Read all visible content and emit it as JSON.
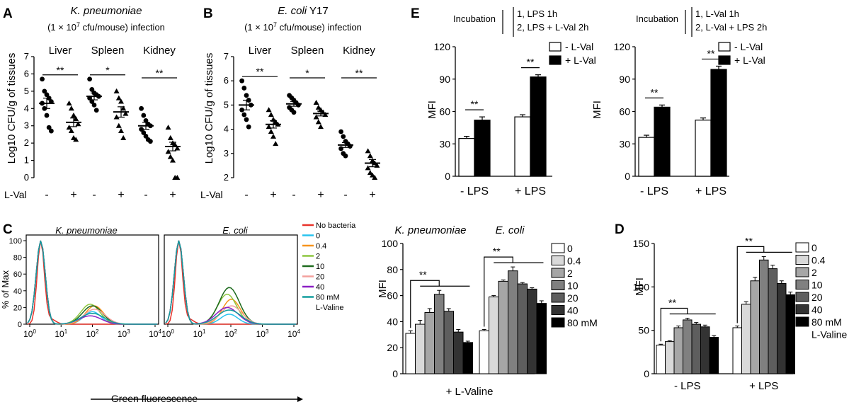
{
  "panel_letters": {
    "a": "A",
    "b": "B",
    "c": "C",
    "d": "D",
    "e": "E"
  },
  "colors": {
    "black": "#000000",
    "white": "#ffffff"
  },
  "chart_data": [
    {
      "id": "A",
      "type": "scatter",
      "title_species": "K. pneumoniae",
      "title_dose_prefix": "(1 × 10",
      "title_dose_exp": "7",
      "title_dose_suffix": " cfu/mouse) infection",
      "ylabel": "Log10 CFU/g of tissues",
      "ylim": [
        0,
        7
      ],
      "yticks": [
        "0",
        "1",
        "2",
        "3",
        "4",
        "5",
        "6",
        "7"
      ],
      "xrow_label": "L-Val",
      "treatment_signs": [
        "-",
        "+"
      ],
      "organs": [
        {
          "name": "Liver",
          "sig": "**",
          "groups": [
            {
              "marker": "circle",
              "mean": 4.3,
              "sem": 0.3,
              "points": [
                5.7,
                5.0,
                4.8,
                4.6,
                4.4,
                4.3,
                4.0,
                3.6,
                2.9,
                2.7
              ]
            },
            {
              "marker": "triangle",
              "mean": 3.2,
              "sem": 0.25,
              "points": [
                4.3,
                4.0,
                3.6,
                3.4,
                3.1,
                2.9,
                2.7,
                2.3,
                2.2
              ]
            }
          ]
        },
        {
          "name": "Spleen",
          "sig": "*",
          "groups": [
            {
              "marker": "circle",
              "mean": 4.7,
              "sem": 0.2,
              "points": [
                5.7,
                5.1,
                4.9,
                4.8,
                4.7,
                4.6,
                4.4,
                4.2,
                3.9
              ]
            },
            {
              "marker": "triangle",
              "mean": 3.8,
              "sem": 0.3,
              "points": [
                5.0,
                4.6,
                4.4,
                4.0,
                3.7,
                3.5,
                3.0,
                2.7,
                2.3
              ]
            }
          ]
        },
        {
          "name": "Kidney",
          "sig": "**",
          "groups": [
            {
              "marker": "circle",
              "mean": 3.0,
              "sem": 0.2,
              "points": [
                4.0,
                3.6,
                3.3,
                3.1,
                3.0,
                2.8,
                2.6,
                2.4,
                2.2,
                2.1
              ]
            },
            {
              "marker": "triangle",
              "mean": 1.8,
              "sem": 0.25,
              "points": [
                2.9,
                2.3,
                2.0,
                1.9,
                1.7,
                1.5,
                1.2,
                1.0,
                0,
                0
              ]
            }
          ]
        }
      ]
    },
    {
      "id": "B",
      "type": "scatter",
      "title_species": "E. coli",
      "title_strain": " Y17",
      "title_dose_prefix": "(1 × 10",
      "title_dose_exp": "7",
      "title_dose_suffix": " cfu/mouse) infection",
      "ylabel": "Log10 CFU/g of tissues",
      "ylim": [
        2,
        7
      ],
      "yticks": [
        "2",
        "3",
        "4",
        "5",
        "6",
        "7"
      ],
      "xrow_label": "L-Val",
      "treatment_signs": [
        "-",
        "+"
      ],
      "organs": [
        {
          "name": "Liver",
          "sig": "**",
          "groups": [
            {
              "marker": "circle",
              "mean": 5.0,
              "sem": 0.2,
              "points": [
                6.0,
                5.7,
                5.4,
                5.2,
                5.0,
                4.8,
                4.6,
                4.4,
                4.1
              ]
            },
            {
              "marker": "triangle",
              "mean": 4.2,
              "sem": 0.15,
              "points": [
                4.8,
                4.6,
                4.4,
                4.3,
                4.2,
                4.1,
                3.9,
                3.7,
                3.4
              ]
            }
          ]
        },
        {
          "name": "Spleen",
          "sig": "*",
          "groups": [
            {
              "marker": "circle",
              "mean": 5.05,
              "sem": 0.1,
              "points": [
                5.4,
                5.3,
                5.2,
                5.1,
                5.0,
                4.9,
                4.8,
                4.7
              ]
            },
            {
              "marker": "triangle",
              "mean": 4.65,
              "sem": 0.1,
              "points": [
                5.1,
                4.9,
                4.8,
                4.7,
                4.6,
                4.5,
                4.3,
                4.1
              ]
            }
          ]
        },
        {
          "name": "Kidney",
          "sig": "**",
          "groups": [
            {
              "marker": "circle",
              "mean": 3.35,
              "sem": 0.1,
              "points": [
                3.9,
                3.7,
                3.5,
                3.4,
                3.3,
                3.2,
                3.0,
                2.9
              ]
            },
            {
              "marker": "triangle",
              "mean": 2.6,
              "sem": 0.15,
              "points": [
                3.1,
                2.9,
                2.7,
                2.6,
                2.5,
                2.4,
                2.2,
                2.1,
                2.0
              ]
            }
          ]
        }
      ]
    },
    {
      "id": "E1",
      "type": "bar",
      "incubation_label": "Incubation",
      "step1": "1, LPS 1h",
      "step2": "2, LPS + L-Val 2h",
      "ylabel": "MFI",
      "ylim": [
        0,
        120
      ],
      "yticks": [
        "0",
        "30",
        "60",
        "90",
        "120"
      ],
      "categories": [
        "- LPS",
        "+ LPS"
      ],
      "legend": [
        "- L-Val",
        "+ L-Val"
      ],
      "sig": [
        "**",
        "**"
      ],
      "series": [
        {
          "name": "- L-Val",
          "fill": "#ffffff",
          "values": [
            35,
            55
          ],
          "err": [
            2,
            2
          ]
        },
        {
          "name": "+ L-Val",
          "fill": "#000000",
          "values": [
            52,
            92
          ],
          "err": [
            3,
            2
          ]
        }
      ]
    },
    {
      "id": "E2",
      "type": "bar",
      "incubation_label": "Incubation",
      "step1": "1, L-Val 1h",
      "step2": "2,  L-Val + LPS  2h",
      "ylabel": "MFI",
      "ylim": [
        0,
        120
      ],
      "yticks": [
        "0",
        "30",
        "60",
        "90",
        "120"
      ],
      "categories": [
        "- LPS",
        "+ LPS"
      ],
      "legend": [
        "- L-Val",
        "+ L-Val"
      ],
      "sig": [
        "**",
        "**"
      ],
      "series": [
        {
          "name": "- L-Val",
          "fill": "#ffffff",
          "values": [
            36,
            52
          ],
          "err": [
            2,
            2
          ]
        },
        {
          "name": "+ L-Val",
          "fill": "#000000",
          "values": [
            64,
            99
          ],
          "err": [
            2,
            3
          ]
        }
      ]
    },
    {
      "id": "C-hist",
      "type": "line",
      "xlabel": "Green fluorescence",
      "ylabel": "% of Max",
      "yticks": [
        "0",
        "20",
        "40",
        "60",
        "80",
        "100"
      ],
      "xtick_base": "10",
      "xtick_exps": [
        "0",
        "1",
        "2",
        "3",
        "4"
      ],
      "panels": [
        {
          "title": "K. pneumoniae"
        },
        {
          "title": "E. coli"
        }
      ],
      "legend": [
        {
          "label": "No bacteria",
          "color": "#e8332a"
        },
        {
          "label": "0",
          "color": "#29c3ef"
        },
        {
          "label": "0.4",
          "color": "#f7941d"
        },
        {
          "label": "2",
          "color": "#8dc63f"
        },
        {
          "label": "10",
          "color": "#1e6b1e"
        },
        {
          "label": "20",
          "color": "#f3a19d"
        },
        {
          "label": "40",
          "color": "#8b1fc4"
        },
        {
          "label": "80 mM",
          "color": "#139e9e"
        },
        {
          "label": "L-Valine",
          "color": ""
        }
      ],
      "peaks": [
        {
          "panel": 0,
          "series": [
            "No bacteria",
            "0",
            "0.4",
            "2",
            "10",
            "20",
            "40",
            "80 mM"
          ],
          "second_peak": [
            0,
            15,
            22,
            24,
            22,
            18,
            10,
            13
          ]
        },
        {
          "panel": 1,
          "series": [
            "No bacteria",
            "0",
            "0.4",
            "2",
            "10",
            "20",
            "40",
            "80 mM"
          ],
          "second_peak": [
            0,
            12,
            30,
            36,
            44,
            22,
            20,
            17
          ]
        }
      ]
    },
    {
      "id": "C-bar",
      "type": "bar",
      "titles": [
        "K. pneumoniae",
        "E. coli"
      ],
      "ylabel": "MFI",
      "ylim": [
        0,
        100
      ],
      "yticks": [
        "0",
        "20",
        "40",
        "60",
        "80",
        "100"
      ],
      "xlabel": "+ L-Valine",
      "sig": [
        "**",
        "**"
      ],
      "legend": [
        "0",
        "0.4",
        "2",
        "10",
        "20",
        "40",
        "80 mM"
      ],
      "fills": [
        "#ffffff",
        "#d9d9d9",
        "#a6a6a6",
        "#808080",
        "#5e5e5e",
        "#333333",
        "#000000"
      ],
      "groups": [
        {
          "values": [
            31,
            38,
            47,
            61,
            48,
            32,
            24
          ],
          "err": [
            2,
            3,
            3,
            3,
            2,
            2,
            1
          ]
        },
        {
          "values": [
            33,
            59,
            71,
            79,
            69,
            65,
            54
          ],
          "err": [
            1,
            1,
            1,
            3,
            1,
            1,
            2
          ]
        }
      ]
    },
    {
      "id": "D",
      "type": "bar",
      "ylabel": "MFI",
      "ylim": [
        0,
        150
      ],
      "yticks": [
        "0",
        "50",
        "100",
        "150"
      ],
      "categories": [
        "- LPS",
        "+ LPS"
      ],
      "sig": [
        "**",
        "**"
      ],
      "legend": [
        "0",
        "0.4",
        "2",
        "10",
        "20",
        "40",
        "80 mM"
      ],
      "legend_extra": "L-Valine",
      "fills": [
        "#ffffff",
        "#d9d9d9",
        "#a6a6a6",
        "#808080",
        "#5e5e5e",
        "#333333",
        "#000000"
      ],
      "groups": [
        {
          "values": [
            33,
            37,
            53,
            62,
            57,
            54,
            42
          ],
          "err": [
            1,
            1,
            2,
            2,
            2,
            2,
            2
          ]
        },
        {
          "values": [
            53,
            80,
            107,
            131,
            121,
            104,
            91
          ],
          "err": [
            2,
            3,
            4,
            4,
            4,
            3,
            3
          ]
        }
      ]
    }
  ]
}
